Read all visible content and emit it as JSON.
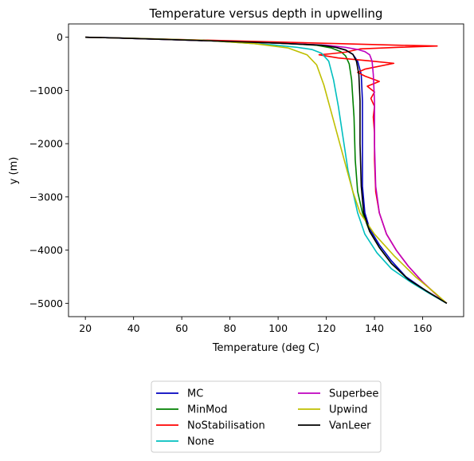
{
  "chart_data": {
    "type": "line",
    "title": "Temperature versus depth in upwelling",
    "xlabel": "Temperature (deg C)",
    "ylabel": "y (m)",
    "xlim": [
      13,
      177
    ],
    "ylim": [
      -5250,
      250
    ],
    "xticks": [
      20,
      40,
      60,
      80,
      100,
      120,
      140,
      160
    ],
    "yticks": [
      0,
      -1000,
      -2000,
      -3000,
      -4000,
      -5000
    ],
    "ytick_labels": [
      "0",
      "−1000",
      "−2000",
      "−3000",
      "−4000",
      "−5000"
    ],
    "grid": false,
    "legend_placement": "below",
    "legend_columns": 2,
    "series": [
      {
        "name": "MC",
        "color": "#0000bf",
        "points": [
          [
            20,
            0
          ],
          [
            30,
            -10
          ],
          [
            60,
            -50
          ],
          [
            100,
            -110
          ],
          [
            118,
            -150
          ],
          [
            124,
            -190
          ],
          [
            128,
            -240
          ],
          [
            131,
            -320
          ],
          [
            133,
            -450
          ],
          [
            134.5,
            -700
          ],
          [
            135,
            -1200
          ],
          [
            135,
            -2000
          ],
          [
            135,
            -2800
          ],
          [
            136,
            -3300
          ],
          [
            138,
            -3600
          ],
          [
            142,
            -3900
          ],
          [
            147,
            -4200
          ],
          [
            153,
            -4500
          ],
          [
            161,
            -4750
          ],
          [
            170,
            -5000
          ]
        ]
      },
      {
        "name": "MinMod",
        "color": "#008000",
        "points": [
          [
            20,
            0
          ],
          [
            30,
            -10
          ],
          [
            60,
            -50
          ],
          [
            100,
            -110
          ],
          [
            116,
            -150
          ],
          [
            122,
            -200
          ],
          [
            126,
            -270
          ],
          [
            128,
            -350
          ],
          [
            129.5,
            -500
          ],
          [
            130.5,
            -800
          ],
          [
            131.5,
            -1500
          ],
          [
            132,
            -2300
          ],
          [
            133,
            -2900
          ],
          [
            135,
            -3300
          ],
          [
            138,
            -3650
          ],
          [
            142,
            -3950
          ],
          [
            147,
            -4250
          ],
          [
            154,
            -4550
          ],
          [
            162,
            -4780
          ],
          [
            170,
            -5000
          ]
        ]
      },
      {
        "name": "NoStabilisation",
        "color": "#ff0000",
        "points": [
          [
            20,
            0
          ],
          [
            40,
            -20
          ],
          [
            70,
            -55
          ],
          [
            100,
            -90
          ],
          [
            125,
            -120
          ],
          [
            150,
            -150
          ],
          [
            166,
            -165
          ],
          [
            150,
            -190
          ],
          [
            134,
            -220
          ],
          [
            128,
            -280
          ],
          [
            122,
            -310
          ],
          [
            117,
            -330
          ],
          [
            125,
            -390
          ],
          [
            137,
            -440
          ],
          [
            148,
            -490
          ],
          [
            136,
            -600
          ],
          [
            133,
            -660
          ],
          [
            136,
            -730
          ],
          [
            142,
            -830
          ],
          [
            137,
            -920
          ],
          [
            140,
            -1030
          ],
          [
            138.5,
            -1150
          ],
          [
            140,
            -1300
          ],
          [
            139.5,
            -1500
          ],
          [
            140,
            -1800
          ],
          [
            140,
            -2300
          ],
          [
            140.5,
            -2900
          ],
          [
            142,
            -3300
          ],
          [
            145,
            -3700
          ],
          [
            149,
            -4000
          ],
          [
            154,
            -4300
          ],
          [
            160,
            -4600
          ],
          [
            166,
            -4850
          ],
          [
            170,
            -5000
          ]
        ]
      },
      {
        "name": "None",
        "color": "#00bfbf",
        "points": [
          [
            20,
            0
          ],
          [
            40,
            -20
          ],
          [
            70,
            -60
          ],
          [
            97,
            -140
          ],
          [
            108,
            -190
          ],
          [
            114,
            -230
          ],
          [
            118,
            -300
          ],
          [
            121,
            -450
          ],
          [
            123,
            -800
          ],
          [
            125,
            -1300
          ],
          [
            127,
            -1900
          ],
          [
            129,
            -2500
          ],
          [
            131,
            -2900
          ],
          [
            133,
            -3300
          ],
          [
            136,
            -3700
          ],
          [
            141,
            -4050
          ],
          [
            147,
            -4350
          ],
          [
            155,
            -4600
          ],
          [
            163,
            -4820
          ],
          [
            170,
            -5000
          ]
        ]
      },
      {
        "name": "Superbee",
        "color": "#bf00bf",
        "points": [
          [
            20,
            0
          ],
          [
            30,
            -10
          ],
          [
            60,
            -50
          ],
          [
            100,
            -110
          ],
          [
            120,
            -150
          ],
          [
            128,
            -190
          ],
          [
            133,
            -230
          ],
          [
            136,
            -270
          ],
          [
            138,
            -330
          ],
          [
            139,
            -450
          ],
          [
            139.5,
            -700
          ],
          [
            140,
            -1200
          ],
          [
            140,
            -2000
          ],
          [
            140.5,
            -2800
          ],
          [
            142,
            -3300
          ],
          [
            145,
            -3700
          ],
          [
            149,
            -4000
          ],
          [
            154,
            -4300
          ],
          [
            160,
            -4600
          ],
          [
            166,
            -4850
          ],
          [
            170,
            -5000
          ]
        ]
      },
      {
        "name": "Upwind",
        "color": "#bfbf00",
        "points": [
          [
            20,
            0
          ],
          [
            40,
            -20
          ],
          [
            70,
            -60
          ],
          [
            90,
            -120
          ],
          [
            104,
            -200
          ],
          [
            112,
            -330
          ],
          [
            116,
            -520
          ],
          [
            119,
            -900
          ],
          [
            122,
            -1400
          ],
          [
            125,
            -1900
          ],
          [
            128,
            -2400
          ],
          [
            131,
            -2900
          ],
          [
            134,
            -3300
          ],
          [
            140,
            -3700
          ],
          [
            148,
            -4100
          ],
          [
            157,
            -4500
          ],
          [
            165,
            -4800
          ],
          [
            170,
            -5000
          ]
        ]
      },
      {
        "name": "VanLeer",
        "color": "#000000",
        "points": [
          [
            20,
            0
          ],
          [
            30,
            -10
          ],
          [
            60,
            -50
          ],
          [
            100,
            -110
          ],
          [
            118,
            -150
          ],
          [
            124,
            -190
          ],
          [
            128,
            -240
          ],
          [
            131,
            -320
          ],
          [
            132.5,
            -450
          ],
          [
            133.5,
            -700
          ],
          [
            134,
            -1200
          ],
          [
            134,
            -2000
          ],
          [
            134.5,
            -2800
          ],
          [
            135.5,
            -3300
          ],
          [
            138,
            -3650
          ],
          [
            142,
            -3950
          ],
          [
            147,
            -4250
          ],
          [
            154,
            -4550
          ],
          [
            162,
            -4780
          ],
          [
            170,
            -5000
          ]
        ]
      }
    ]
  }
}
